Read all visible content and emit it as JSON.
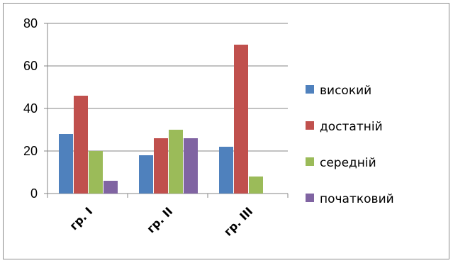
{
  "chart_data": {
    "type": "bar",
    "categories": [
      "гр. І",
      "гр. ІІ",
      "гр. ІІІ"
    ],
    "series": [
      {
        "name": "високий",
        "values": [
          28,
          18,
          22
        ],
        "color": "#4f81bd"
      },
      {
        "name": "достатній",
        "values": [
          46,
          26,
          70
        ],
        "color": "#c0504d"
      },
      {
        "name": "середній",
        "values": [
          20,
          30,
          8
        ],
        "color": "#9bbb59"
      },
      {
        "name": "початковий",
        "values": [
          6,
          26,
          0
        ],
        "color": "#8064a2"
      }
    ],
    "ylim": [
      0,
      80
    ],
    "yticks": [
      0,
      20,
      40,
      60,
      80
    ],
    "grid": true,
    "legend": "right"
  }
}
